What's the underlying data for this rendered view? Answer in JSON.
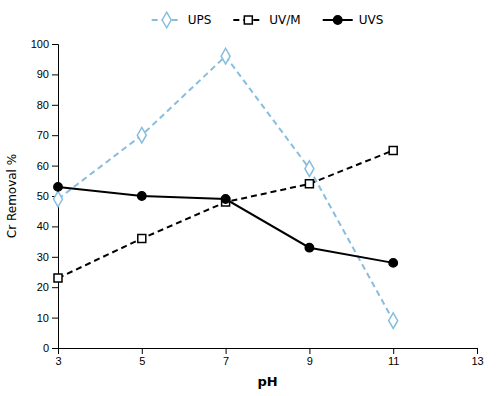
{
  "chart_data": {
    "type": "line",
    "xlabel": "pH",
    "ylabel": "Cr Removal %",
    "x": [
      3,
      5,
      7,
      9,
      11
    ],
    "xlim": [
      3,
      13
    ],
    "ylim": [
      0,
      100
    ],
    "xticks": [
      3,
      5,
      7,
      9,
      11,
      13
    ],
    "yticks": [
      0,
      10,
      20,
      30,
      40,
      50,
      60,
      70,
      80,
      90,
      100
    ],
    "grid": false,
    "legend": "top",
    "series": [
      {
        "name": "UPS",
        "color": "#87BEDD",
        "marker": "diamond-open",
        "line_style": "dashed",
        "values": [
          49,
          70,
          96,
          59,
          9
        ]
      },
      {
        "name": "UV/M",
        "color": "black",
        "marker": "square-open",
        "line_style": "dashed",
        "values": [
          23,
          36,
          48,
          54,
          65
        ]
      },
      {
        "name": "UVS",
        "color": "black",
        "marker": "circle",
        "line_style": "solid",
        "values": [
          53,
          50,
          49,
          33,
          28
        ]
      }
    ]
  }
}
